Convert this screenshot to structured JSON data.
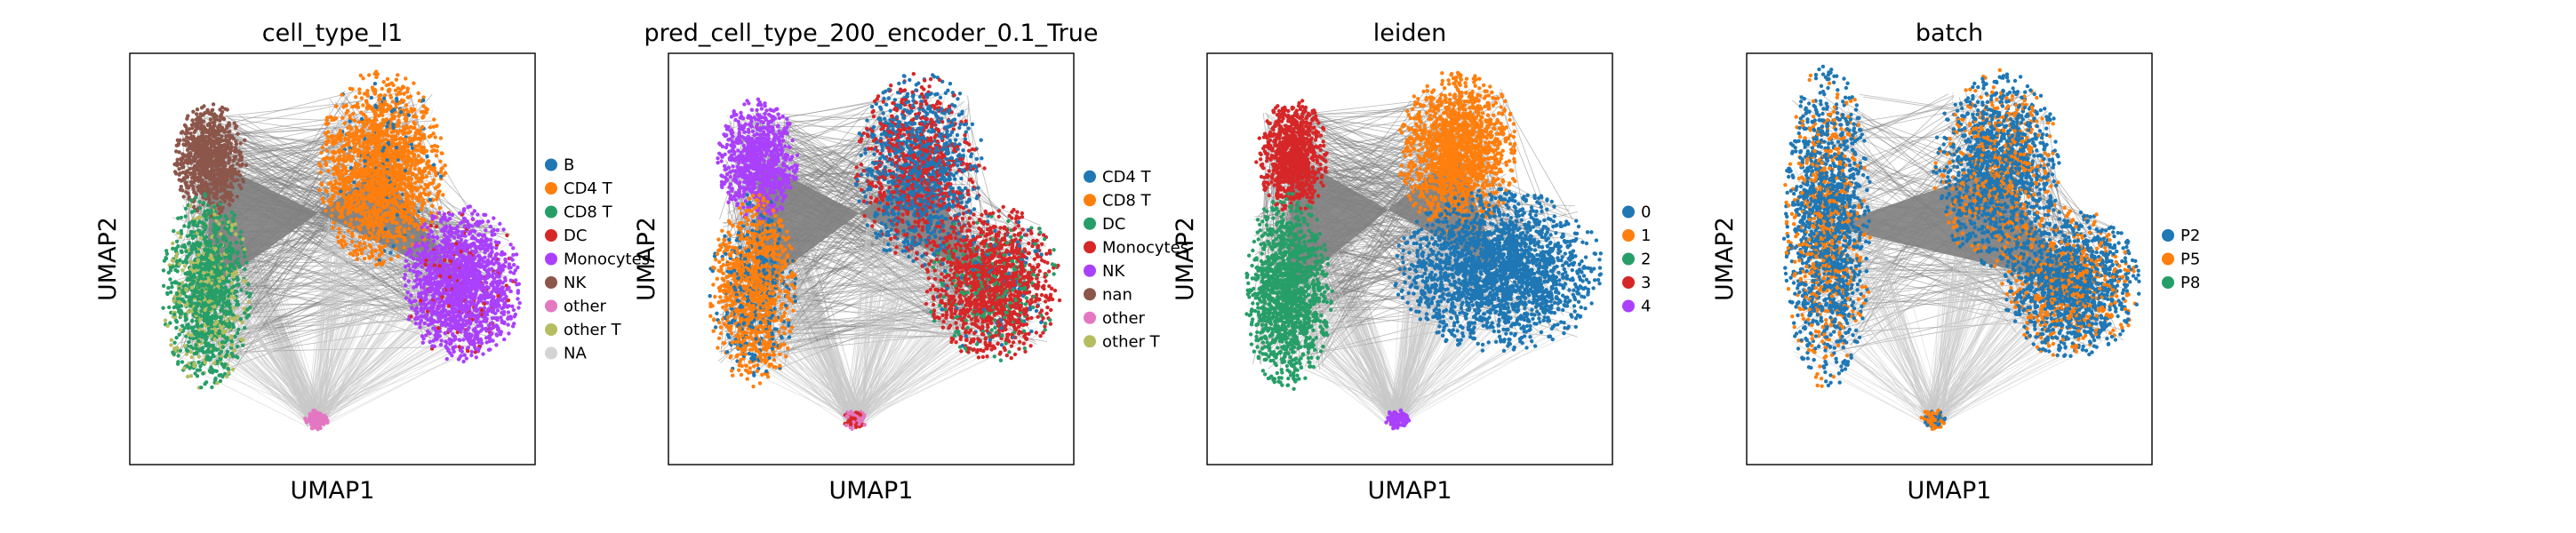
{
  "chart_data": [
    {
      "type": "scatter",
      "title": "cell_type_l1",
      "xlabel": "UMAP1",
      "ylabel": "UMAP2",
      "grid": false,
      "legend_placement": "right",
      "legend": [
        {
          "label": "B",
          "color": "#1f77b4"
        },
        {
          "label": "CD4 T",
          "color": "#ff7f0e"
        },
        {
          "label": "CD8 T",
          "color": "#279e68"
        },
        {
          "label": "DC",
          "color": "#d62728"
        },
        {
          "label": "Monocytes",
          "color": "#aa40fc"
        },
        {
          "label": "NK",
          "color": "#8c564b"
        },
        {
          "label": "other",
          "color": "#e377c2"
        },
        {
          "label": "other T",
          "color": "#b5bd61"
        },
        {
          "label": "NA",
          "color": "#d3d3d3"
        }
      ],
      "clusters": [
        {
          "label": "NK",
          "center": [
            0.2,
            0.74
          ],
          "radius": [
            0.09,
            0.14
          ],
          "color": "#8c564b",
          "mix": [],
          "count": 900
        },
        {
          "label": "CD8 T",
          "center": [
            0.19,
            0.42
          ],
          "radius": [
            0.11,
            0.24
          ],
          "color": "#279e68",
          "mix": [
            {
              "color": "#b5bd61",
              "share": 0.25
            }
          ],
          "count": 1400
        },
        {
          "label": "CD4 T",
          "center": [
            0.62,
            0.72
          ],
          "radius": [
            0.16,
            0.24
          ],
          "color": "#ff7f0e",
          "mix": [
            {
              "color": "#1f77b4",
              "share": 0.04
            }
          ],
          "count": 1800
        },
        {
          "label": "Monocytes",
          "center": [
            0.82,
            0.44
          ],
          "radius": [
            0.15,
            0.19
          ],
          "color": "#aa40fc",
          "mix": [
            {
              "color": "#d62728",
              "share": 0.06
            }
          ],
          "count": 1700
        },
        {
          "label": "other",
          "center": [
            0.46,
            0.11
          ],
          "radius": [
            0.03,
            0.025
          ],
          "color": "#e377c2",
          "mix": [],
          "count": 120
        }
      ]
    },
    {
      "type": "scatter",
      "title": "pred_cell_type_200_encoder_0.1_True",
      "xlabel": "UMAP1",
      "ylabel": "UMAP2",
      "grid": false,
      "legend_placement": "right",
      "legend": [
        {
          "label": "CD4 T",
          "color": "#1f77b4"
        },
        {
          "label": "CD8 T",
          "color": "#ff7f0e"
        },
        {
          "label": "DC",
          "color": "#279e68"
        },
        {
          "label": "Monocytes",
          "color": "#d62728"
        },
        {
          "label": "NK",
          "color": "#aa40fc"
        },
        {
          "label": "nan",
          "color": "#8c564b"
        },
        {
          "label": "other",
          "color": "#e377c2"
        },
        {
          "label": "other T",
          "color": "#b5bd61"
        }
      ],
      "clusters": [
        {
          "label": "NK",
          "center": [
            0.22,
            0.74
          ],
          "radius": [
            0.1,
            0.15
          ],
          "color": "#aa40fc",
          "mix": [],
          "count": 900
        },
        {
          "label": "CD8 T",
          "center": [
            0.21,
            0.42
          ],
          "radius": [
            0.11,
            0.24
          ],
          "color": "#ff7f0e",
          "mix": [
            {
              "color": "#1f77b4",
              "share": 0.25
            }
          ],
          "count": 1400
        },
        {
          "label": "CD4 T",
          "center": [
            0.62,
            0.72
          ],
          "radius": [
            0.16,
            0.24
          ],
          "color": "#1f77b4",
          "mix": [
            {
              "color": "#d62728",
              "share": 0.4
            }
          ],
          "count": 1800
        },
        {
          "label": "Monocytes",
          "center": [
            0.8,
            0.44
          ],
          "radius": [
            0.17,
            0.19
          ],
          "color": "#d62728",
          "mix": [
            {
              "color": "#279e68",
              "share": 0.15
            },
            {
              "color": "#1f77b4",
              "share": 0.1
            }
          ],
          "count": 1700
        },
        {
          "label": "other",
          "center": [
            0.46,
            0.11
          ],
          "radius": [
            0.03,
            0.025
          ],
          "color": "#e377c2",
          "mix": [
            {
              "color": "#d62728",
              "share": 0.3
            }
          ],
          "count": 120
        }
      ]
    },
    {
      "type": "scatter",
      "title": "leiden",
      "xlabel": "UMAP1",
      "ylabel": "UMAP2",
      "grid": false,
      "legend_placement": "right",
      "legend": [
        {
          "label": "0",
          "color": "#1f77b4"
        },
        {
          "label": "1",
          "color": "#ff7f0e"
        },
        {
          "label": "2",
          "color": "#279e68"
        },
        {
          "label": "3",
          "color": "#d62728"
        },
        {
          "label": "4",
          "color": "#aa40fc"
        }
      ],
      "clusters": [
        {
          "label": "3",
          "center": [
            0.21,
            0.75
          ],
          "radius": [
            0.09,
            0.14
          ],
          "color": "#d62728",
          "mix": [],
          "count": 900
        },
        {
          "label": "2",
          "center": [
            0.2,
            0.42
          ],
          "radius": [
            0.11,
            0.24
          ],
          "color": "#279e68",
          "mix": [],
          "count": 1400
        },
        {
          "label": "1",
          "center": [
            0.62,
            0.76
          ],
          "radius": [
            0.15,
            0.2
          ],
          "color": "#ff7f0e",
          "mix": [],
          "count": 1500
        },
        {
          "label": "0",
          "center": [
            0.72,
            0.47
          ],
          "radius": [
            0.26,
            0.2
          ],
          "color": "#1f77b4",
          "mix": [],
          "count": 2200
        },
        {
          "label": "4",
          "center": [
            0.47,
            0.11
          ],
          "radius": [
            0.03,
            0.025
          ],
          "color": "#aa40fc",
          "mix": [],
          "count": 120
        }
      ]
    },
    {
      "type": "scatter",
      "title": "batch",
      "xlabel": "UMAP1",
      "ylabel": "UMAP2",
      "grid": false,
      "legend_placement": "right",
      "legend": [
        {
          "label": "P2",
          "color": "#1f77b4"
        },
        {
          "label": "P5",
          "color": "#ff7f0e"
        },
        {
          "label": "P8",
          "color": "#279e68"
        }
      ],
      "clusters": [
        {
          "label": "P2",
          "center": [
            0.2,
            0.58
          ],
          "radius": [
            0.11,
            0.4
          ],
          "color": "#1f77b4",
          "mix": [
            {
              "color": "#ff7f0e",
              "share": 0.3
            }
          ],
          "count": 2000
        },
        {
          "label": "P2",
          "center": [
            0.62,
            0.72
          ],
          "radius": [
            0.16,
            0.24
          ],
          "color": "#1f77b4",
          "mix": [
            {
              "color": "#ff7f0e",
              "share": 0.3
            }
          ],
          "count": 1800
        },
        {
          "label": "P2",
          "center": [
            0.8,
            0.44
          ],
          "radius": [
            0.17,
            0.19
          ],
          "color": "#1f77b4",
          "mix": [
            {
              "color": "#ff7f0e",
              "share": 0.3
            }
          ],
          "count": 1700
        },
        {
          "label": "P5",
          "center": [
            0.46,
            0.11
          ],
          "radius": [
            0.03,
            0.025
          ],
          "color": "#ff7f0e",
          "mix": [
            {
              "color": "#1f77b4",
              "share": 0.3
            }
          ],
          "count": 120
        }
      ]
    }
  ]
}
